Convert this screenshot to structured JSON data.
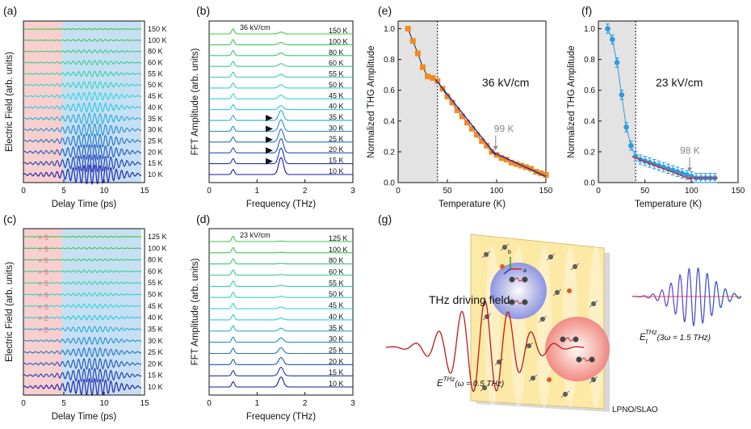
{
  "chart_data": [
    {
      "id": "a",
      "type": "line",
      "panel_label": "(a)",
      "xlabel": "Delay Time (ps)",
      "ylabel": "Electric Field (arb. units)",
      "xlim": [
        0,
        15
      ],
      "xticks": [
        "0",
        "5",
        "10",
        "15"
      ],
      "shaded_regions": [
        {
          "x": [
            0,
            4.8
          ],
          "color": "#f7cfcf"
        },
        {
          "x": [
            4.8,
            14.6
          ],
          "color": "#c6dff3"
        }
      ],
      "series": [
        {
          "name": "150 K",
          "amplitude": 0.05
        },
        {
          "name": "100 K",
          "amplitude": 0.09
        },
        {
          "name": "80 K",
          "amplitude": 0.14
        },
        {
          "name": "60 K",
          "amplitude": 0.2
        },
        {
          "name": "55 K",
          "amplitude": 0.26
        },
        {
          "name": "50 K",
          "amplitude": 0.32
        },
        {
          "name": "45 K",
          "amplitude": 0.38
        },
        {
          "name": "40 K",
          "amplitude": 0.44
        },
        {
          "name": "35 K",
          "amplitude": 0.5
        },
        {
          "name": "30 K",
          "amplitude": 0.56
        },
        {
          "name": "25 K",
          "amplitude": 0.63
        },
        {
          "name": "20 K",
          "amplitude": 0.71
        },
        {
          "name": "15 K",
          "amplitude": 0.8
        },
        {
          "name": "10 K",
          "amplitude": 0.9
        }
      ]
    },
    {
      "id": "b",
      "type": "line",
      "panel_label": "(b)",
      "annotation": "36 kV/cm",
      "xlabel": "Frequency (THz)",
      "ylabel": "FFT Amplitude (arb. units)",
      "xlim": [
        0,
        3
      ],
      "xticks": [
        "0",
        "1",
        "2",
        "3"
      ],
      "peaks_THz": [
        0.5,
        1.5
      ],
      "series": [
        {
          "name": "150 K",
          "fundamental": 0.55,
          "third_harmonic": 0.2
        },
        {
          "name": "100 K",
          "fundamental": 0.55,
          "third_harmonic": 0.25
        },
        {
          "name": "80 K",
          "fundamental": 0.55,
          "third_harmonic": 0.28
        },
        {
          "name": "60 K",
          "fundamental": 0.55,
          "third_harmonic": 0.3
        },
        {
          "name": "55 K",
          "fundamental": 0.55,
          "third_harmonic": 0.33
        },
        {
          "name": "50 K",
          "fundamental": 0.55,
          "third_harmonic": 0.36
        },
        {
          "name": "45 K",
          "fundamental": 0.55,
          "third_harmonic": 0.4
        },
        {
          "name": "40 K",
          "fundamental": 0.55,
          "third_harmonic": 0.44
        },
        {
          "name": "35 K",
          "fundamental": 0.55,
          "third_harmonic": 1.1
        },
        {
          "name": "30 K",
          "fundamental": 0.55,
          "third_harmonic": 1.25
        },
        {
          "name": "25 K",
          "fundamental": 0.55,
          "third_harmonic": 1.4
        },
        {
          "name": "20 K",
          "fundamental": 0.55,
          "third_harmonic": 1.55
        },
        {
          "name": "15 K",
          "fundamental": 0.55,
          "third_harmonic": 1.7
        },
        {
          "name": "10 K",
          "fundamental": 0.55,
          "third_harmonic": 1.85
        }
      ]
    },
    {
      "id": "c",
      "type": "line",
      "panel_label": "(c)",
      "xlabel": "Delay Time (ps)",
      "ylabel": "Electric Field (arb. units)",
      "xlim": [
        0,
        15
      ],
      "xticks": [
        "0",
        "5",
        "10",
        "15"
      ],
      "shaded_regions": [
        {
          "x": [
            0,
            4.8
          ],
          "color": "#f7cfcf"
        },
        {
          "x": [
            4.8,
            14.6
          ],
          "color": "#c6dff3"
        }
      ],
      "scale_labels": [
        "× 5",
        "× 5",
        "× 5",
        "× 5",
        "× 5",
        "× 5",
        "× 5",
        "× 2",
        "× 2"
      ],
      "series": [
        {
          "name": "125 K",
          "amplitude": 0.05
        },
        {
          "name": "100 K",
          "amplitude": 0.07
        },
        {
          "name": "80 K",
          "amplitude": 0.09
        },
        {
          "name": "60 K",
          "amplitude": 0.11
        },
        {
          "name": "55 K",
          "amplitude": 0.13
        },
        {
          "name": "50 K",
          "amplitude": 0.15
        },
        {
          "name": "45 K",
          "amplitude": 0.18
        },
        {
          "name": "40 K",
          "amplitude": 0.21
        },
        {
          "name": "35 K",
          "amplitude": 0.26
        },
        {
          "name": "30 K",
          "amplitude": 0.32
        },
        {
          "name": "25 K",
          "amplitude": 0.4
        },
        {
          "name": "20 K",
          "amplitude": 0.5
        },
        {
          "name": "15 K",
          "amplitude": 0.62
        },
        {
          "name": "10 K",
          "amplitude": 0.75
        }
      ]
    },
    {
      "id": "d",
      "type": "line",
      "panel_label": "(d)",
      "annotation": "23 kV/cm",
      "xlabel": "Frequency (THz)",
      "ylabel": "FFT Amplitude (arb. units)",
      "xlim": [
        0,
        3
      ],
      "xticks": [
        "0",
        "1",
        "2",
        "3"
      ],
      "peaks_THz": [
        0.5,
        1.5
      ],
      "series": [
        {
          "name": "125 K",
          "fundamental": 0.55,
          "third_harmonic": 0.05
        },
        {
          "name": "100 K",
          "fundamental": 0.55,
          "third_harmonic": 0.05
        },
        {
          "name": "80 K",
          "fundamental": 0.55,
          "third_harmonic": 0.05
        },
        {
          "name": "60 K",
          "fundamental": 0.55,
          "third_harmonic": 0.06
        },
        {
          "name": "55 K",
          "fundamental": 0.55,
          "third_harmonic": 0.1
        },
        {
          "name": "50 K",
          "fundamental": 0.55,
          "third_harmonic": 0.13
        },
        {
          "name": "45 K",
          "fundamental": 0.55,
          "third_harmonic": 0.16
        },
        {
          "name": "40 K",
          "fundamental": 0.55,
          "third_harmonic": 0.2
        },
        {
          "name": "35 K",
          "fundamental": 0.55,
          "third_harmonic": 0.3
        },
        {
          "name": "30 K",
          "fundamental": 0.55,
          "third_harmonic": 0.45
        },
        {
          "name": "25 K",
          "fundamental": 0.55,
          "third_harmonic": 0.6
        },
        {
          "name": "20 K",
          "fundamental": 0.55,
          "third_harmonic": 0.75
        },
        {
          "name": "15 K",
          "fundamental": 0.55,
          "third_harmonic": 0.9
        },
        {
          "name": "10 K",
          "fundamental": 0.55,
          "third_harmonic": 1.05
        }
      ]
    },
    {
      "id": "e",
      "type": "scatter",
      "panel_label": "(e)",
      "annotation": "36 kV/cm",
      "marker": "99 K",
      "marker_T": 99,
      "xlabel": "Temperature (K)",
      "ylabel": "Normalized THG Amplitude",
      "xlim": [
        0,
        150
      ],
      "ylim": [
        0,
        1.05
      ],
      "xticks": [
        0,
        50,
        100,
        150
      ],
      "yticks": [
        "0.0",
        "0.2",
        "0.4",
        "0.6",
        "0.8",
        "1.0"
      ],
      "shade_x": [
        0,
        40
      ],
      "dashed_x": 40,
      "point_color": "#f28a1e",
      "x": [
        10,
        15,
        20,
        25,
        30,
        35,
        40,
        45,
        50,
        55,
        60,
        65,
        70,
        75,
        80,
        85,
        90,
        95,
        100,
        105,
        110,
        115,
        120,
        125,
        130,
        135,
        140,
        145,
        150
      ],
      "y": [
        1.0,
        0.92,
        0.84,
        0.75,
        0.69,
        0.68,
        0.66,
        0.61,
        0.56,
        0.52,
        0.47,
        0.43,
        0.39,
        0.35,
        0.31,
        0.27,
        0.24,
        0.2,
        0.18,
        0.16,
        0.15,
        0.13,
        0.12,
        0.11,
        0.1,
        0.09,
        0.07,
        0.06,
        0.05
      ],
      "fit_lines": [
        {
          "x": [
            38,
            99
          ],
          "y": [
            0.67,
            0.18
          ],
          "color": "#1f1fb0"
        },
        {
          "x": [
            95,
            150
          ],
          "y": [
            0.2,
            0.04
          ],
          "color": "#1f1fb0"
        }
      ]
    },
    {
      "id": "f",
      "type": "scatter",
      "panel_label": "(f)",
      "annotation": "23 kV/cm",
      "marker": "98 K",
      "marker_T": 98,
      "xlabel": "Temperature (K)",
      "ylabel": "Normalized THG Amplitude",
      "xlim": [
        0,
        150
      ],
      "ylim": [
        0,
        1.05
      ],
      "xticks": [
        0,
        50,
        100,
        150
      ],
      "yticks": [
        "0.0",
        "0.2",
        "0.4",
        "0.6",
        "0.8",
        "1.0"
      ],
      "shade_x": [
        0,
        40
      ],
      "dashed_x": 40,
      "point_color": "#2b9be0",
      "x": [
        10,
        15,
        20,
        25,
        30,
        35,
        40,
        45,
        50,
        55,
        60,
        65,
        70,
        75,
        80,
        85,
        90,
        95,
        100,
        105,
        110,
        115,
        120,
        125
      ],
      "y": [
        1.0,
        0.93,
        0.78,
        0.57,
        0.36,
        0.24,
        0.17,
        0.15,
        0.14,
        0.13,
        0.12,
        0.11,
        0.1,
        0.09,
        0.08,
        0.07,
        0.06,
        0.05,
        0.04,
        0.03,
        0.03,
        0.03,
        0.03,
        0.03
      ],
      "y_err": 0.03,
      "fit_lines": [
        {
          "x": [
            36,
            100
          ],
          "y": [
            0.17,
            0.02
          ],
          "color": "#e02020"
        },
        {
          "x": [
            95,
            128
          ],
          "y": [
            0.03,
            0.03
          ],
          "color": "#e02020"
        }
      ]
    }
  ],
  "schematic": {
    "panel_label": "(g)",
    "driving_label": "THz driving field",
    "sample_label": "LPNO/SLAO",
    "input_field_main": "E",
    "input_field_sup": "THz",
    "input_field_args": "(ω = 0.5 THz)",
    "output_field_main": "E",
    "output_field_sub": "t",
    "output_field_sup": "THz",
    "output_field_args": "(3ω = 1.5 THz)",
    "axes_labels": [
      "b",
      "a"
    ],
    "colors": {
      "input_wave": "#c0181c",
      "output_wave_start": "#9b3fd1",
      "output_wave_end": "#1f5fc4",
      "sample": "#fde9a6"
    }
  },
  "colors": {
    "cold_end": "#1a1aa8",
    "mid": "#2ad8e8",
    "hot_end": "#3cc83c"
  }
}
